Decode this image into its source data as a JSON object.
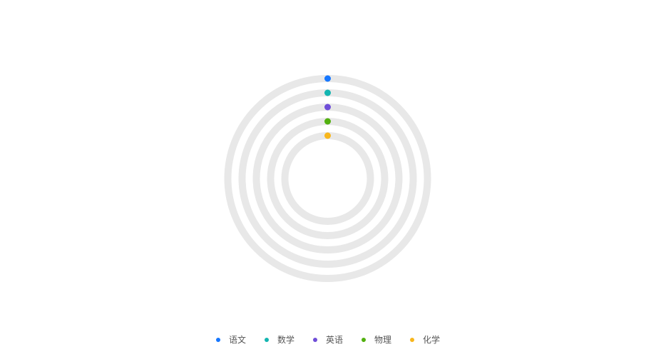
{
  "chart_data": {
    "type": "radial-bar",
    "categories": [
      "语文",
      "数学",
      "英语",
      "物理",
      "化学"
    ],
    "values": [
      0,
      0,
      0,
      0,
      0
    ],
    "max": 100,
    "colors": [
      "#1677ff",
      "#13b5b1",
      "#6f4ed8",
      "#52b00f",
      "#f8b61b"
    ],
    "track_color": "#e8e8e8",
    "legend_position": "bottom-center",
    "legend": [
      {
        "label": "语文",
        "color": "#1677ff"
      },
      {
        "label": "数学",
        "color": "#13b5b1"
      },
      {
        "label": "英语",
        "color": "#6f4ed8"
      },
      {
        "label": "物理",
        "color": "#52b00f"
      },
      {
        "label": "化学",
        "color": "#f8b61b"
      }
    ]
  }
}
